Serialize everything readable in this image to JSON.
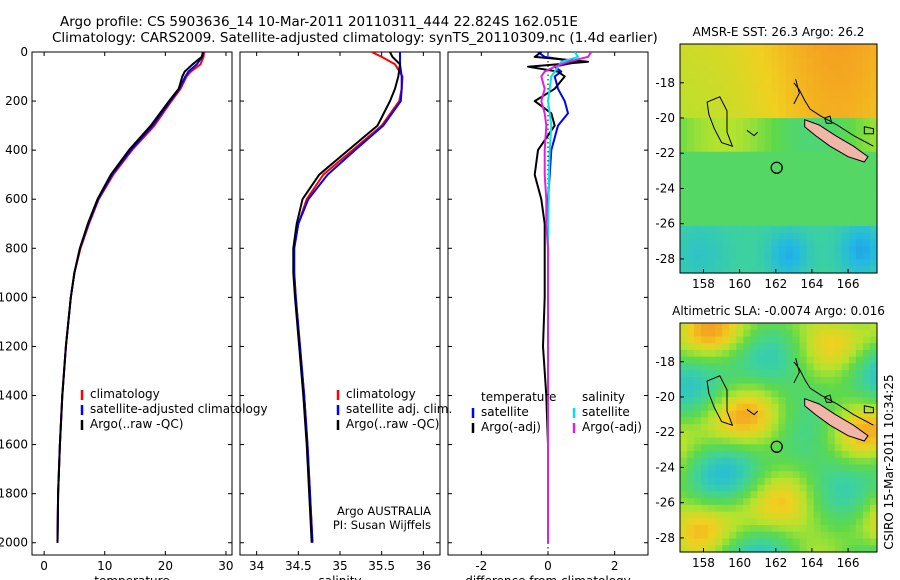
{
  "header": {
    "line1": "Argo profile: CS 5903636_14 10-Mar-2011 20110311_444 22.824S 162.051E",
    "line2": "Climatology: CARS2009. Satellite-adjusted climatology: synTS_20110309.nc (1.4d earlier)"
  },
  "footer_text": "CSIRO 15-Mar-2011 10:34:25",
  "colors": {
    "red": "#ff0000",
    "blue": "#0000ff",
    "black": "#000000",
    "cyan": "#00e5e5",
    "magenta": "#e020e0",
    "island": "#f2b6a8"
  },
  "chart_data": [
    {
      "type": "line",
      "id": "temperature",
      "xlabel": "temperature",
      "xlim": [
        -2,
        31
      ],
      "xticks": [
        0,
        10,
        20,
        30
      ],
      "ylim": [
        2050,
        0
      ],
      "yticks": [
        0,
        200,
        400,
        600,
        800,
        1000,
        1200,
        1400,
        1600,
        1800,
        2000
      ],
      "legend": [
        "climatology",
        "satellite-adjusted climatology",
        "Argo(..raw -QC)"
      ],
      "depth": [
        0,
        20,
        50,
        80,
        100,
        150,
        200,
        300,
        400,
        500,
        600,
        700,
        800,
        900,
        1000,
        1200,
        1400,
        1600,
        1800,
        2000
      ],
      "series": [
        {
          "name": "climatology",
          "color": "red",
          "values": [
            26.4,
            26.3,
            25.8,
            24.2,
            23.5,
            22.5,
            21.0,
            18.2,
            14.5,
            11.4,
            9.0,
            7.4,
            6.0,
            5.0,
            4.4,
            3.6,
            3.0,
            2.6,
            2.3,
            2.2
          ]
        },
        {
          "name": "satellite-adjusted climatology",
          "color": "blue",
          "values": [
            26.3,
            26.1,
            25.2,
            23.8,
            23.3,
            22.3,
            20.8,
            17.9,
            14.3,
            11.2,
            8.9,
            7.3,
            5.9,
            5.0,
            4.4,
            3.6,
            3.0,
            2.6,
            2.3,
            2.2
          ]
        },
        {
          "name": "Argo(..raw -QC)",
          "color": "black",
          "values": [
            26.2,
            26.0,
            24.5,
            23.2,
            22.8,
            22.2,
            20.6,
            17.6,
            14.0,
            11.0,
            8.8,
            7.2,
            5.9,
            5.0,
            4.4,
            3.6,
            3.0,
            2.6,
            2.3,
            2.2
          ]
        }
      ]
    },
    {
      "type": "line",
      "id": "salinity",
      "xlabel": "salinity",
      "xlim": [
        33.8,
        36.2
      ],
      "xticks": [
        34,
        34.5,
        35,
        35.5,
        36
      ],
      "ylim": [
        2050,
        0
      ],
      "legend": [
        "climatology",
        "satellite adj. clim.",
        "Argo(..raw -QC)"
      ],
      "annotation": [
        "Argo AUSTRALIA",
        "PI: Susan Wijffels"
      ],
      "depth": [
        0,
        20,
        50,
        100,
        150,
        200,
        300,
        400,
        500,
        600,
        700,
        800,
        900,
        1000,
        1200,
        1400,
        1600,
        1800,
        2000
      ],
      "series": [
        {
          "name": "climatology",
          "color": "red",
          "values": [
            35.38,
            35.5,
            35.66,
            35.75,
            35.74,
            35.71,
            35.5,
            35.15,
            34.8,
            34.6,
            34.5,
            34.45,
            34.45,
            34.47,
            34.52,
            34.57,
            34.61,
            34.64,
            34.67
          ]
        },
        {
          "name": "satellite adj. clim.",
          "color": "blue",
          "values": [
            35.72,
            35.72,
            35.72,
            35.74,
            35.74,
            35.73,
            35.52,
            35.18,
            34.85,
            34.62,
            34.5,
            34.45,
            34.45,
            34.47,
            34.52,
            34.57,
            34.61,
            34.64,
            34.67
          ]
        },
        {
          "name": "Argo(..raw -QC)",
          "color": "black",
          "values": [
            35.6,
            35.63,
            35.72,
            35.7,
            35.66,
            35.6,
            35.45,
            35.1,
            34.75,
            34.55,
            34.48,
            34.44,
            34.44,
            34.46,
            34.51,
            34.56,
            34.6,
            34.63,
            34.66
          ]
        }
      ]
    },
    {
      "type": "line",
      "id": "difference",
      "xlabel": "difference from climatology",
      "xlim": [
        -3,
        3
      ],
      "xticks": [
        -2,
        0,
        2
      ],
      "ylim": [
        2050,
        0
      ],
      "legend_temperature": {
        "title": "temperature",
        "items": [
          "satellite",
          "Argo(-adj)"
        ]
      },
      "legend_salinity": {
        "title": "salinity",
        "items": [
          "satellite",
          "Argo(-adj)"
        ]
      },
      "depth": [
        0,
        20,
        40,
        60,
        80,
        100,
        150,
        200,
        250,
        300,
        400,
        500,
        600,
        700,
        800,
        1000,
        1200,
        1400,
        1600,
        1800,
        2000
      ],
      "series": [
        {
          "name": "temperature satellite",
          "color": "blue",
          "values": [
            -0.3,
            -0.1,
            0.9,
            0.2,
            0.4,
            0.2,
            0.3,
            0.5,
            0.6,
            0.3,
            0.1,
            0.05,
            0.0,
            0.0,
            0.0,
            0.0,
            0.0,
            0.0,
            0.0,
            0.0,
            0.0
          ]
        },
        {
          "name": "temperature Argo(-adj)",
          "color": "black",
          "values": [
            -0.2,
            -0.4,
            1.2,
            -0.6,
            0.3,
            0.5,
            0.2,
            -0.4,
            0.1,
            0.2,
            -0.3,
            -0.4,
            -0.2,
            -0.1,
            -0.1,
            -0.1,
            -0.15,
            -0.05,
            0.0,
            0.0,
            0.0
          ]
        },
        {
          "name": "salinity satellite",
          "color": "cyan",
          "values": [
            0.8,
            0.9,
            0.4,
            0.3,
            0.2,
            0.1,
            0.05,
            0.0,
            0.05,
            0.1,
            0.05,
            0.03,
            0.02,
            0.0,
            0.0,
            0.0,
            0.0,
            0.0,
            0.0,
            0.0,
            0.0
          ]
        },
        {
          "name": "salinity Argo(-adj)",
          "color": "magenta",
          "values": [
            1.3,
            1.2,
            0.6,
            0.2,
            -0.1,
            -0.2,
            -0.1,
            -0.2,
            -0.1,
            -0.05,
            -0.1,
            -0.1,
            -0.05,
            -0.05,
            0.0,
            0.0,
            0.0,
            0.0,
            0.0,
            0.0,
            0.0
          ]
        }
      ]
    },
    {
      "type": "heatmap",
      "id": "sst_map",
      "title": "AMSR-E SST: 26.3 Argo: 26.2",
      "xlim": [
        156.7,
        167.6
      ],
      "ylim": [
        -28.8,
        -15.8
      ],
      "xticks": [
        158,
        160,
        162,
        164,
        166
      ],
      "yticks": [
        -28,
        -26,
        -24,
        -22,
        -20,
        -18
      ],
      "argo_position": {
        "lon": 162.051,
        "lat": -22.824
      }
    },
    {
      "type": "heatmap",
      "id": "sla_map",
      "title": "Altimetric SLA: -0.0074 Argo: 0.016",
      "xlim": [
        156.7,
        167.6
      ],
      "ylim": [
        -28.8,
        -15.8
      ],
      "xticks": [
        158,
        160,
        162,
        164,
        166
      ],
      "yticks": [
        -28,
        -26,
        -24,
        -22,
        -20,
        -18
      ],
      "argo_position": {
        "lon": 162.051,
        "lat": -22.824
      }
    }
  ]
}
